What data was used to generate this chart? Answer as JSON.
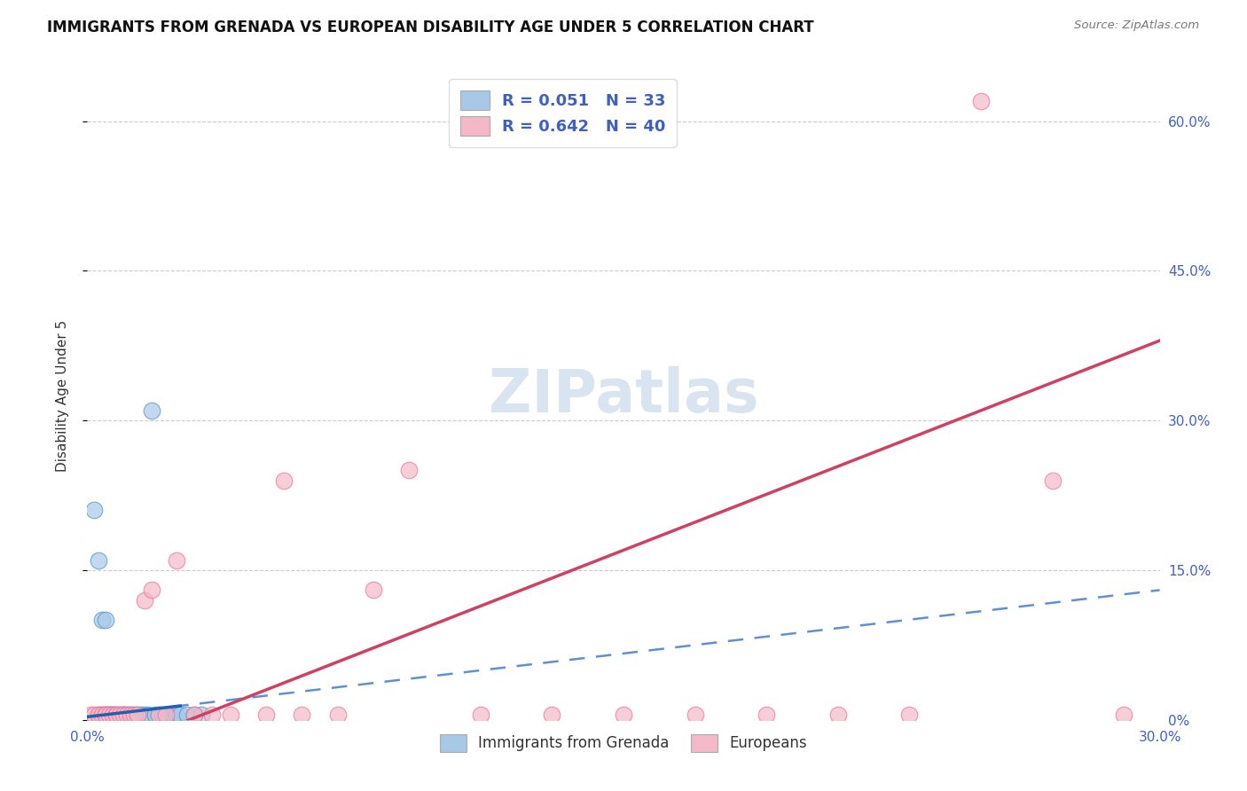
{
  "title": "IMMIGRANTS FROM GRENADA VS EUROPEAN DISABILITY AGE UNDER 5 CORRELATION CHART",
  "source": "Source: ZipAtlas.com",
  "ylabel": "Disability Age Under 5",
  "xmin": 0.0,
  "xmax": 0.3,
  "ymin": 0.0,
  "ymax": 0.65,
  "ytick_vals": [
    0.0,
    0.15,
    0.3,
    0.45,
    0.6
  ],
  "ytick_labels": [
    "0%",
    "15.0%",
    "30.0%",
    "45.0%",
    "60.0%"
  ],
  "xtick_vals": [
    0.0,
    0.3
  ],
  "xtick_labels": [
    "0.0%",
    "30.0%"
  ],
  "color_blue": "#a8c8e8",
  "color_blue_edge": "#4a90c8",
  "color_pink": "#f4b8c8",
  "color_pink_edge": "#e87090",
  "color_blue_line_solid": "#2060b0",
  "color_blue_line_dash": "#6090d0",
  "color_pink_line": "#d04060",
  "watermark_color": "#d8e4f0",
  "tick_label_color": "#4060c0",
  "grenada_x": [
    0.002,
    0.003,
    0.003,
    0.004,
    0.004,
    0.005,
    0.005,
    0.006,
    0.006,
    0.007,
    0.007,
    0.008,
    0.009,
    0.01,
    0.01,
    0.011,
    0.012,
    0.013,
    0.014,
    0.015,
    0.016,
    0.017,
    0.018,
    0.019,
    0.02,
    0.021,
    0.022,
    0.024,
    0.025,
    0.026,
    0.028,
    0.03,
    0.032
  ],
  "grenada_y": [
    0.21,
    0.16,
    0.005,
    0.1,
    0.005,
    0.1,
    0.005,
    0.005,
    0.005,
    0.005,
    0.005,
    0.005,
    0.005,
    0.005,
    0.005,
    0.005,
    0.005,
    0.005,
    0.005,
    0.005,
    0.005,
    0.005,
    0.31,
    0.005,
    0.005,
    0.005,
    0.005,
    0.005,
    0.005,
    0.005,
    0.005,
    0.005,
    0.005
  ],
  "european_x": [
    0.001,
    0.002,
    0.003,
    0.004,
    0.005,
    0.005,
    0.006,
    0.007,
    0.008,
    0.008,
    0.009,
    0.01,
    0.011,
    0.012,
    0.013,
    0.014,
    0.016,
    0.018,
    0.02,
    0.022,
    0.025,
    0.03,
    0.035,
    0.04,
    0.05,
    0.055,
    0.06,
    0.07,
    0.08,
    0.09,
    0.11,
    0.13,
    0.15,
    0.17,
    0.19,
    0.21,
    0.23,
    0.25,
    0.27,
    0.29
  ],
  "european_y": [
    0.005,
    0.005,
    0.005,
    0.005,
    0.005,
    0.005,
    0.005,
    0.005,
    0.005,
    0.005,
    0.005,
    0.005,
    0.005,
    0.005,
    0.005,
    0.005,
    0.12,
    0.13,
    0.005,
    0.005,
    0.16,
    0.005,
    0.005,
    0.005,
    0.005,
    0.24,
    0.005,
    0.005,
    0.13,
    0.25,
    0.005,
    0.005,
    0.005,
    0.005,
    0.005,
    0.005,
    0.005,
    0.62,
    0.24,
    0.005
  ]
}
